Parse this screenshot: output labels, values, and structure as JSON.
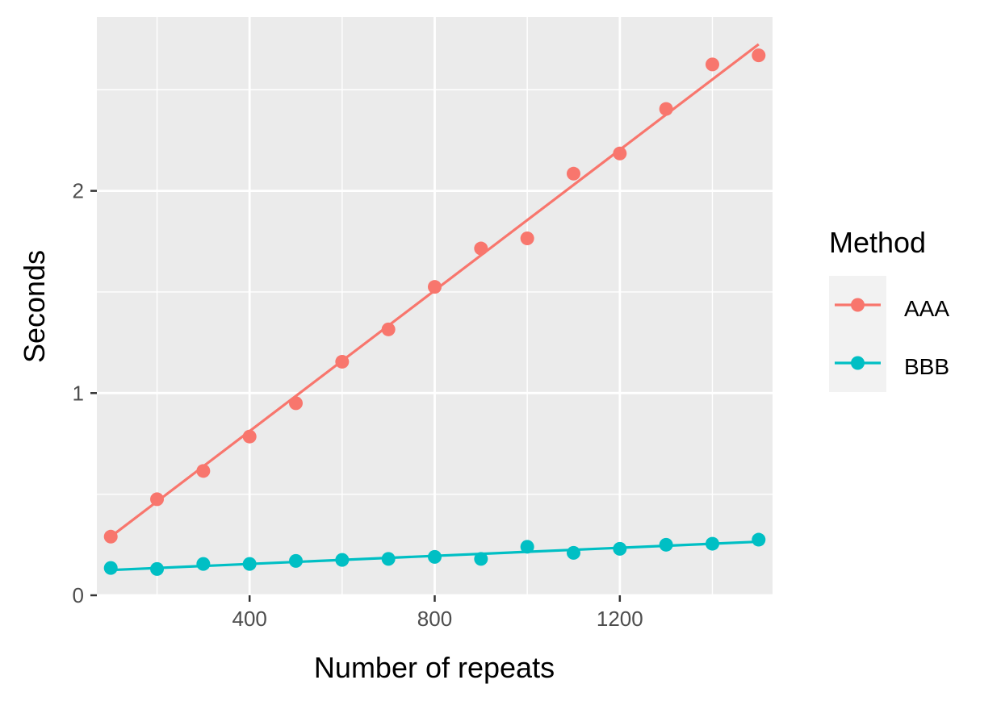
{
  "chart_data": {
    "type": "scatter",
    "xlabel": "Number of repeats",
    "ylabel": "Seconds",
    "xlim": [
      70,
      1530
    ],
    "ylim": [
      0,
      2.86
    ],
    "x_ticks": [
      400,
      800,
      1200
    ],
    "x_tick_labels": [
      "400",
      "800",
      "1200"
    ],
    "y_ticks": [
      0,
      1,
      2
    ],
    "y_tick_labels": [
      "0",
      "1",
      "2"
    ],
    "grid": true,
    "legend": {
      "title": "Method",
      "position": "right"
    },
    "x": [
      100,
      200,
      300,
      400,
      500,
      600,
      700,
      800,
      900,
      1000,
      1100,
      1200,
      1300,
      1400,
      1500
    ],
    "series": [
      {
        "name": "AAA",
        "color": "#F8766D",
        "values": [
          0.29,
          0.475,
          0.615,
          0.785,
          0.95,
          1.155,
          1.315,
          1.525,
          1.715,
          1.765,
          2.085,
          2.185,
          2.405,
          2.625,
          2.67
        ],
        "fit": [
          0.29,
          2.725
        ]
      },
      {
        "name": "BBB",
        "color": "#00BFC4",
        "values": [
          0.135,
          0.13,
          0.155,
          0.155,
          0.17,
          0.175,
          0.18,
          0.19,
          0.18,
          0.24,
          0.21,
          0.23,
          0.25,
          0.255,
          0.275
        ],
        "fit": [
          0.125,
          0.265
        ]
      }
    ]
  }
}
